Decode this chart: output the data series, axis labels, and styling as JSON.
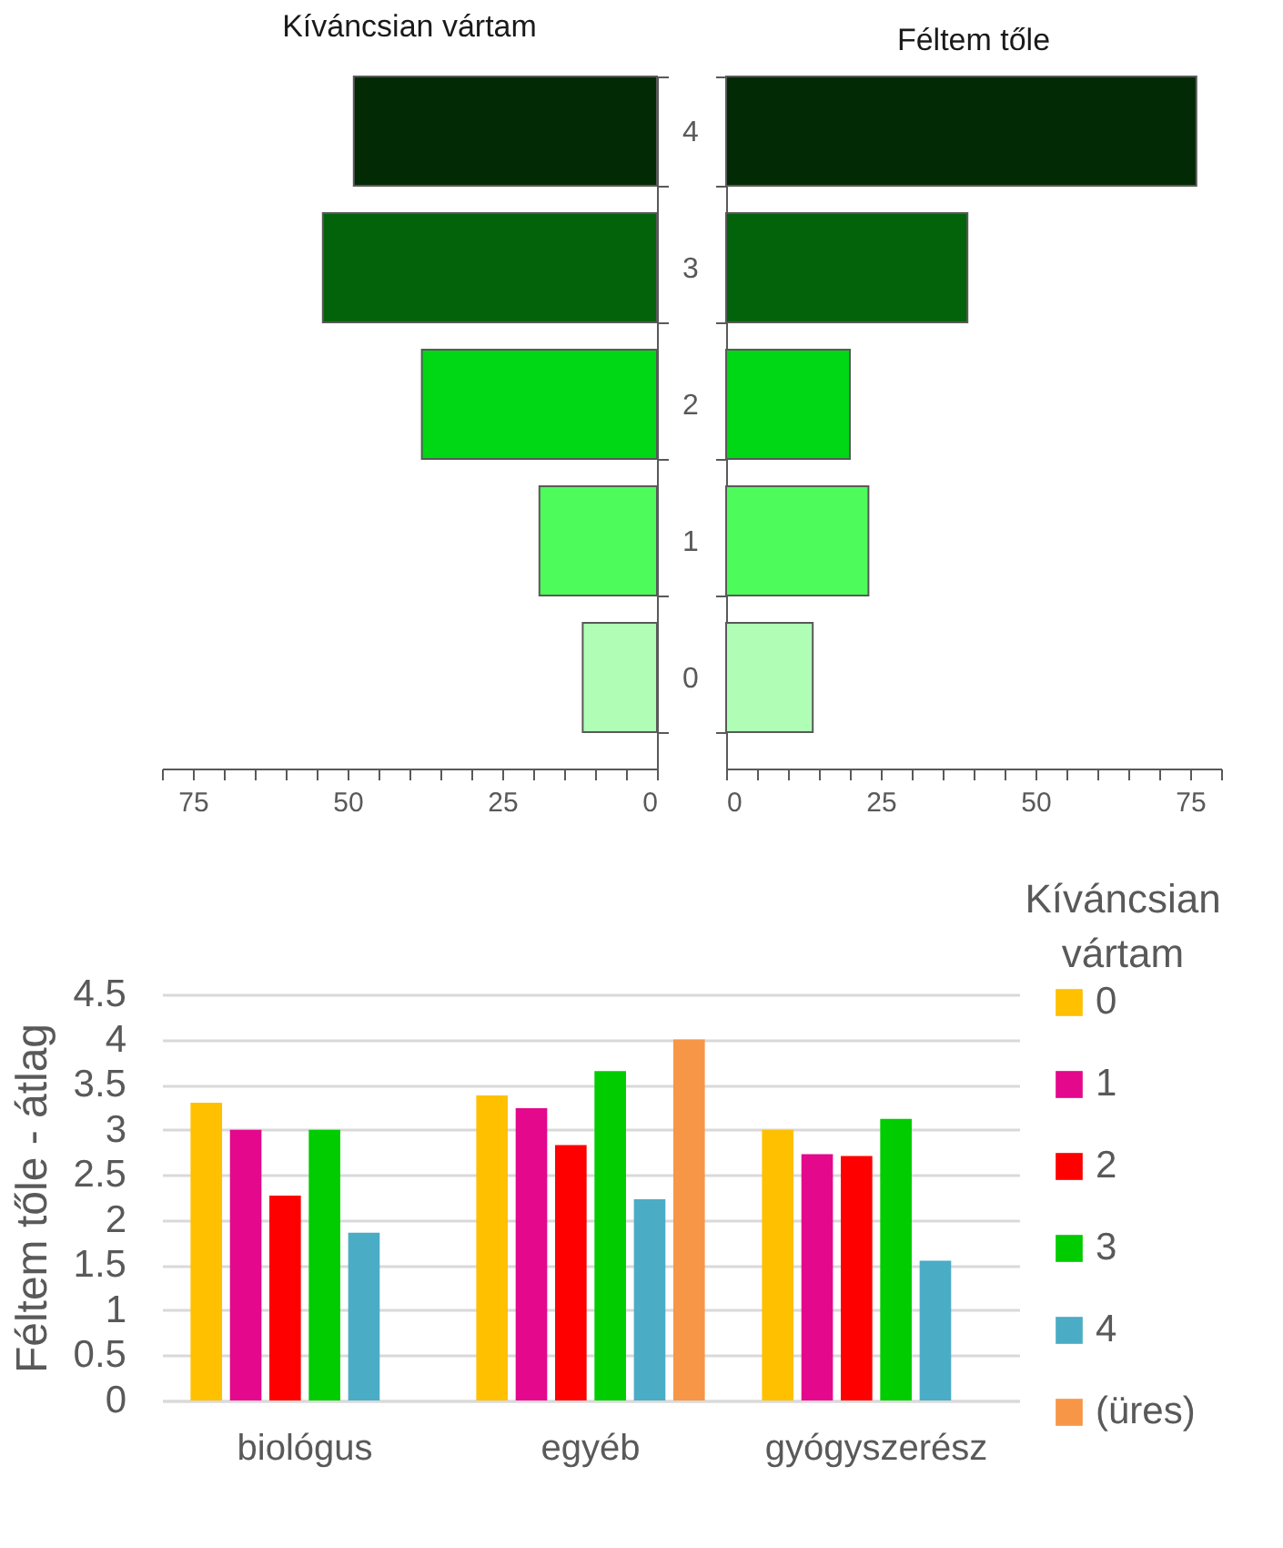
{
  "chart_data": [
    {
      "type": "bar",
      "orientation": "horizontal",
      "title": "Kíváncsian vártam",
      "categories": [
        "4",
        "3",
        "2",
        "1",
        "0"
      ],
      "values": [
        49,
        54,
        38,
        19,
        12
      ],
      "colors": [
        "#012a05",
        "#03630b",
        "#00d815",
        "#4dfc5b",
        "#b0feb6"
      ],
      "xlim": [
        80,
        0
      ],
      "xticks": [
        {
          "value": 80,
          "label": null
        },
        75,
        {
          "value": 70,
          "label": null
        },
        {
          "value": 65,
          "label": null
        },
        {
          "value": 60,
          "label": null
        },
        {
          "value": 55,
          "label": null
        },
        50,
        {
          "value": 45,
          "label": null
        },
        {
          "value": 40,
          "label": null
        },
        {
          "value": 35,
          "label": null
        },
        {
          "value": 30,
          "label": null
        },
        25,
        {
          "value": 20,
          "label": null
        },
        {
          "value": 15,
          "label": null
        },
        {
          "value": 10,
          "label": null
        },
        {
          "value": 5,
          "label": null
        },
        0
      ],
      "grid": false
    },
    {
      "type": "bar",
      "orientation": "horizontal",
      "title": "Féltem tőle",
      "categories": [
        "4",
        "3",
        "2",
        "1",
        "0"
      ],
      "values": [
        76,
        39,
        20,
        23,
        14
      ],
      "colors": [
        "#012a05",
        "#03630b",
        "#00d815",
        "#4dfc5b",
        "#b0feb6"
      ],
      "xlim": [
        0,
        80
      ],
      "xticks": [
        0,
        {
          "value": 5,
          "label": null
        },
        {
          "value": 10,
          "label": null
        },
        {
          "value": 15,
          "label": null
        },
        {
          "value": 20,
          "label": null
        },
        25,
        {
          "value": 30,
          "label": null
        },
        {
          "value": 35,
          "label": null
        },
        {
          "value": 40,
          "label": null
        },
        {
          "value": 45,
          "label": null
        },
        50,
        {
          "value": 55,
          "label": null
        },
        {
          "value": 60,
          "label": null
        },
        {
          "value": 65,
          "label": null
        },
        {
          "value": 70,
          "label": null
        },
        75,
        {
          "value": 80,
          "label": null
        }
      ],
      "tick_labels": "x",
      "grid": false
    },
    {
      "type": "bar",
      "categories": [
        "biológus",
        "egyéb",
        "gyógyszerész"
      ],
      "ylabel": "Féltem tőle - átlag",
      "legend_title": "Kíváncsian vártam",
      "legend": "right",
      "grid": "y",
      "ylim": [
        0,
        4.5
      ],
      "yticks": [
        0,
        0.5,
        1,
        1.5,
        2,
        2.5,
        3,
        3.5,
        4,
        4.5
      ],
      "series": [
        {
          "name": "0",
          "color": "#ffc000",
          "values": [
            3.3,
            3.38,
            3.0
          ]
        },
        {
          "name": "1",
          "color": "#e3088c",
          "values": [
            3.0,
            3.24,
            2.73
          ]
        },
        {
          "name": "2",
          "color": "#ff0000",
          "values": [
            2.27,
            2.83,
            2.71
          ]
        },
        {
          "name": "3",
          "color": "#00cc00",
          "values": [
            3.0,
            3.65,
            3.12
          ]
        },
        {
          "name": "4",
          "color": "#4bacc6",
          "values": [
            1.86,
            2.23,
            1.55
          ]
        },
        {
          "name": "(üres)",
          "color": "#f79646",
          "values": [
            null,
            4.0,
            null
          ]
        }
      ]
    }
  ]
}
